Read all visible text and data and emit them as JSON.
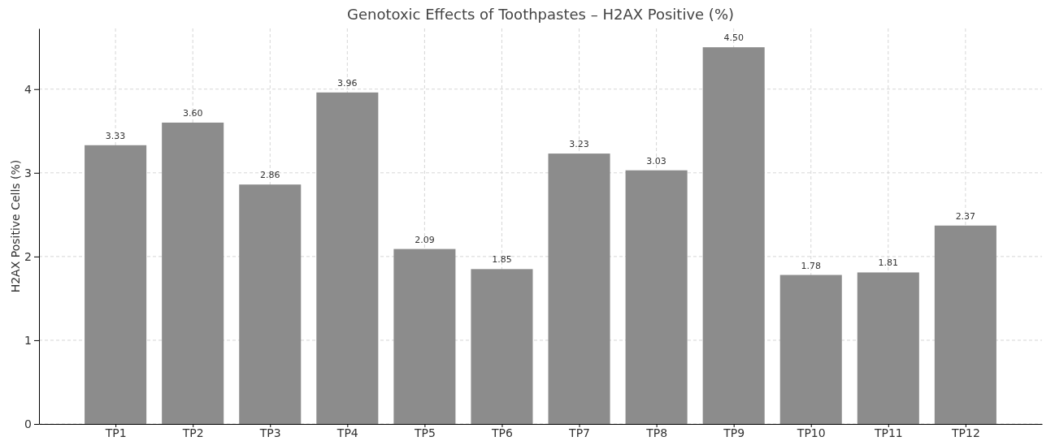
{
  "chart_data": {
    "type": "bar",
    "title": "Genotoxic Effects of Toothpastes – H2AX Positive (%)",
    "ylabel": "H2AX Positive Cells (%)",
    "categories": [
      "TP1",
      "TP2",
      "TP3",
      "TP4",
      "TP5",
      "TP6",
      "TP7",
      "TP8",
      "TP9",
      "TP10",
      "TP11",
      "TP12"
    ],
    "values": [
      3.33,
      3.6,
      2.86,
      3.96,
      2.09,
      1.85,
      3.23,
      3.03,
      4.5,
      1.78,
      1.81,
      2.37
    ],
    "value_labels": [
      "3.33",
      "3.60",
      "2.86",
      "3.96",
      "2.09",
      "1.85",
      "3.23",
      "3.03",
      "4.50",
      "1.78",
      "1.81",
      "2.37"
    ],
    "color": "#8c8c8c",
    "ylim": [
      0,
      4.725
    ],
    "yticks": [
      0,
      1,
      2,
      3,
      4
    ],
    "grid": true
  }
}
